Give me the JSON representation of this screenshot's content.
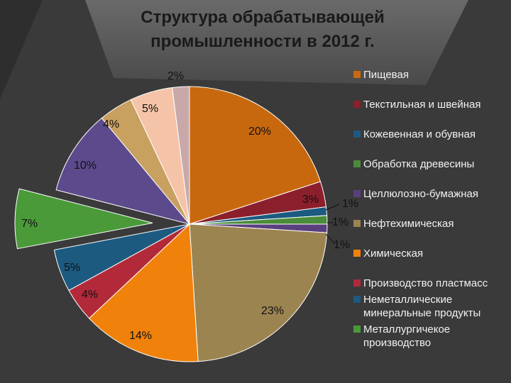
{
  "title": "Структура обрабатывающей промышленности в 2012 г.",
  "chart_data": {
    "type": "pie",
    "title": "Структура обрабатывающей промышленности в 2012 г.",
    "legend_position": "right",
    "slices": [
      {
        "name": "Пищевая",
        "value": 20,
        "label": "20%",
        "color": "#c8680e"
      },
      {
        "name": "Текстильная и швейная",
        "value": 3,
        "label": "3%",
        "color": "#8c1f2c"
      },
      {
        "name": "Кожевенная и обувная",
        "value": 1,
        "label": "1%",
        "color": "#1c5a80"
      },
      {
        "name": "Обработка древесины",
        "value": 1,
        "label": "1%",
        "color": "#4a8c3a"
      },
      {
        "name": "Целлюлозно-бумажная",
        "value": 1,
        "label": "1%",
        "color": "#5a3f7e"
      },
      {
        "name": "Нефтехимическая",
        "value": 23,
        "label": "23%",
        "color": "#9c8450"
      },
      {
        "name": "Химическая",
        "value": 14,
        "label": "14%",
        "color": "#f0820c"
      },
      {
        "name": "Производство пластмасс",
        "value": 4,
        "label": "4%",
        "color": "#b22a3a"
      },
      {
        "name": "Неметаллические минеральные продукты",
        "value": 5,
        "label": "5%",
        "color": "#1c5a80"
      },
      {
        "name": "Металлургичекое производство",
        "value": 7,
        "label": "7%",
        "color": "#4a9a3a",
        "exploded": true
      },
      {
        "name": "",
        "value": 10,
        "label": "10%",
        "color": "#5c4a8c"
      },
      {
        "name": "",
        "value": 4,
        "label": "4%",
        "color": "#c8a060"
      },
      {
        "name": "",
        "value": 5,
        "label": "5%",
        "color": "#f5c4a8"
      },
      {
        "name": "",
        "value": 2,
        "label": "2%",
        "color": "#c8a8a8"
      }
    ]
  },
  "legend": [
    {
      "label": "Пищевая",
      "color": "#c8680e"
    },
    {
      "label": "Текстильная и швейная",
      "color": "#8c1f2c"
    },
    {
      "label": "Кожевенная и обувная",
      "color": "#1c5a80"
    },
    {
      "label": "Обработка древесины",
      "color": "#4a8c3a"
    },
    {
      "label": "Целлюлозно-бумажная",
      "color": "#5a3f7e"
    },
    {
      "label": "Нефтехимическая",
      "color": "#9c8450"
    },
    {
      "label": "Химическая",
      "color": "#f0820c"
    },
    {
      "label": "Производство пластмасс",
      "color": "#b22a3a"
    },
    {
      "label": "Неметаллические минеральные продукты",
      "color": "#1c5a80"
    },
    {
      "label": "Металлургичекое производство",
      "color": "#4a9a3a"
    }
  ]
}
